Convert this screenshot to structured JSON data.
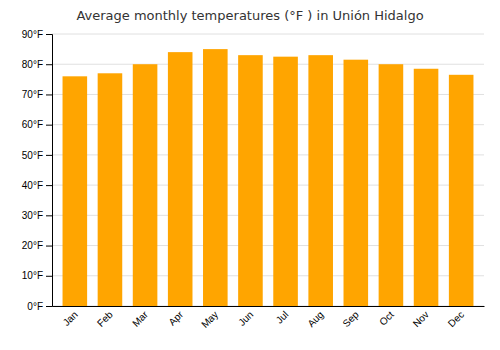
{
  "chart_data": {
    "type": "bar",
    "title": "Average monthly temperatures (°F ) in Unión Hidalgo",
    "categories": [
      "Jan",
      "Feb",
      "Mar",
      "Apr",
      "May",
      "Jun",
      "Jul",
      "Aug",
      "Sep",
      "Oct",
      "Nov",
      "Dec"
    ],
    "values": [
      76,
      77,
      80,
      84,
      85,
      83,
      82.5,
      83,
      81.5,
      80,
      78.5,
      76.5
    ],
    "color": "#FFA500",
    "ylim": [
      0,
      90
    ],
    "yticks": [
      {
        "value": 0,
        "label": "0°F"
      },
      {
        "value": 10,
        "label": "10°F"
      },
      {
        "value": 20,
        "label": "20°F"
      },
      {
        "value": 30,
        "label": "30°F"
      },
      {
        "value": 40,
        "label": "40°F"
      },
      {
        "value": 50,
        "label": "50°F"
      },
      {
        "value": 60,
        "label": "60°F"
      },
      {
        "value": 70,
        "label": "70°F"
      },
      {
        "value": 80,
        "label": "80°F"
      },
      {
        "value": 90,
        "label": "90°F"
      }
    ],
    "grid": true
  }
}
